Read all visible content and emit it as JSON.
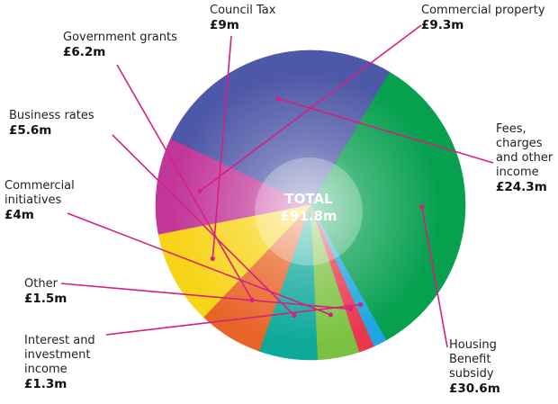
{
  "chart_data": {
    "type": "pie",
    "center_label": "TOTAL",
    "center_value": "£91.8m",
    "slices": [
      {
        "name": "Commercial property",
        "value_label": "£9.3m",
        "value": 9.3,
        "color": "#c2369a"
      },
      {
        "name": "Fees, charges and other income",
        "name_lines": [
          "Fees,",
          "charges",
          "and other",
          "income"
        ],
        "value_label": "£24.3m",
        "value": 24.3,
        "color": "#4e58a8"
      },
      {
        "name": "Housing Benefit subsidy",
        "name_lines": [
          "Housing",
          "Benefit",
          "subsidy"
        ],
        "value_label": "£30.6m",
        "value": 30.6,
        "color": "#06a04f"
      },
      {
        "name": "Interest and investment income",
        "name_lines": [
          "Interest and",
          "investment",
          "income"
        ],
        "value_label": "£1.3m",
        "value": 1.3,
        "color": "#1fa6e0"
      },
      {
        "name": "Other",
        "name_lines": [
          "Other"
        ],
        "value_label": "£1.5m",
        "value": 1.5,
        "color": "#e8364e"
      },
      {
        "name": "Commercial initiatives",
        "name_lines": [
          "Commercial",
          "initiatives"
        ],
        "value_label": "£4m",
        "value": 4,
        "color": "#7cc242"
      },
      {
        "name": "Business rates",
        "name_lines": [
          "Business rates"
        ],
        "value_label": "£5.6m",
        "value": 5.6,
        "color": "#0da99b"
      },
      {
        "name": "Government grants",
        "name_lines": [
          "Government grants"
        ],
        "value_label": "£6.2m",
        "value": 6.2,
        "color": "#e86528"
      },
      {
        "name": "Council Tax",
        "name_lines": [
          "Council Tax"
        ],
        "value_label": "£9m",
        "value": 9,
        "color": "#f7d417"
      }
    ],
    "leader_color": "#d4217f"
  }
}
